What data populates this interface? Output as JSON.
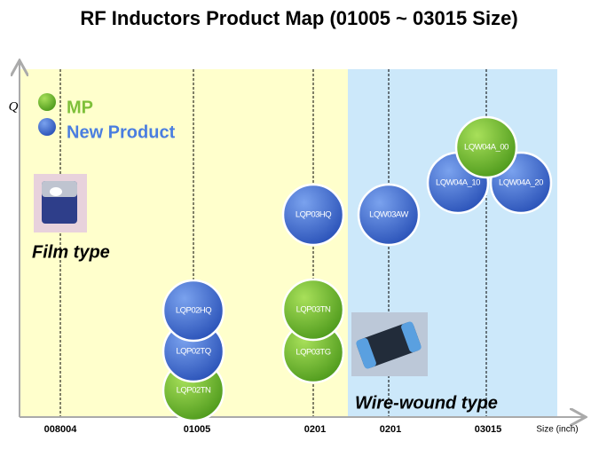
{
  "title": "RF Inductors Product Map (01005 ~ 03015 Size)",
  "y_axis_label": "Q",
  "x_axis_label": "Size (inch)",
  "x_ticks": [
    "008004",
    "01005",
    "0201",
    "0201",
    "03015"
  ],
  "legend": [
    "MP",
    "New Product"
  ],
  "regions": [
    "Film type",
    "Wire-wound type"
  ],
  "products": [
    "LQP02TN",
    "LQP02TQ",
    "LQP02HQ",
    "LQP03TG",
    "LQP03TN",
    "LQP03HQ",
    "LQW03AW",
    "LQW04A_10",
    "LQW04A_20",
    "LQW04A_00"
  ]
}
